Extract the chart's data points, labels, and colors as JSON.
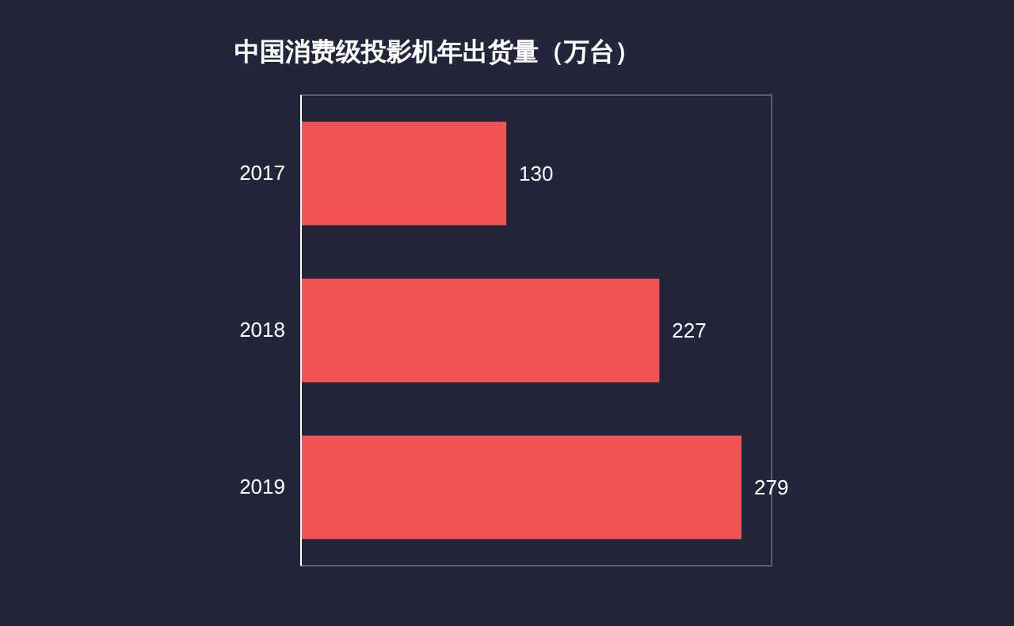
{
  "chart_data": {
    "type": "bar",
    "orientation": "horizontal",
    "title": "中国消费级投影机年出货量（万台）",
    "categories": [
      "2017",
      "2018",
      "2019"
    ],
    "values": [
      130,
      227,
      279
    ],
    "color": "#f25454",
    "data_labels": true
  }
}
